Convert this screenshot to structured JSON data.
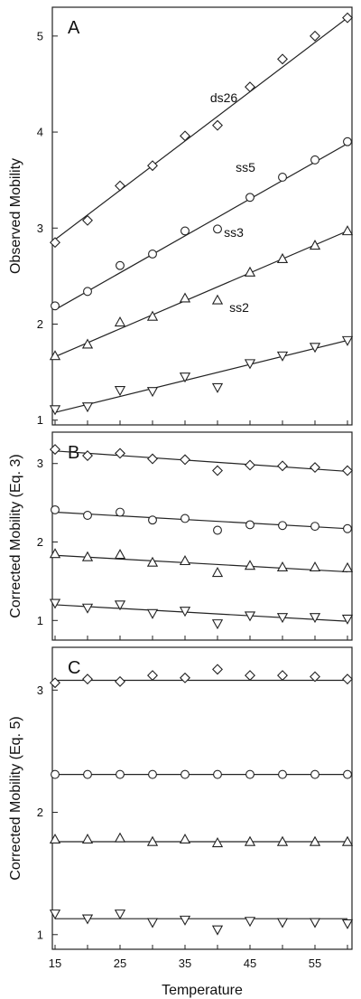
{
  "chart_data": [
    {
      "type": "scatter",
      "panel_label": "A",
      "ylabel": "Observed Mobility",
      "xlabel": "",
      "xlim": [
        15,
        60
      ],
      "ylim": [
        0.95,
        5.3
      ],
      "yticks": [
        1,
        2,
        3,
        4,
        5
      ],
      "x": [
        15,
        20,
        25,
        30,
        35,
        40,
        45,
        50,
        55,
        60
      ],
      "series": [
        {
          "name": "ds26",
          "marker": "diamond",
          "values": [
            2.85,
            3.08,
            3.44,
            3.65,
            3.96,
            4.07,
            4.47,
            4.76,
            5.0,
            5.19
          ],
          "fit": [
            2.88,
            5.19
          ]
        },
        {
          "name": "ss5",
          "marker": "circle",
          "values": [
            2.19,
            2.34,
            2.61,
            2.73,
            2.97,
            2.99,
            3.32,
            3.53,
            3.71,
            3.9
          ],
          "fit": [
            2.15,
            3.88
          ]
        },
        {
          "name": "ss3",
          "marker": "triangle-up",
          "values": [
            1.67,
            1.79,
            2.02,
            2.08,
            2.27,
            2.25,
            2.54,
            2.68,
            2.82,
            2.97
          ],
          "fit": [
            1.66,
            2.97
          ]
        },
        {
          "name": "ss2",
          "marker": "triangle-down",
          "values": [
            1.11,
            1.14,
            1.31,
            1.3,
            1.45,
            1.34,
            1.59,
            1.67,
            1.76,
            1.83
          ],
          "fit": [
            1.08,
            1.83
          ]
        }
      ]
    },
    {
      "type": "scatter",
      "panel_label": "B",
      "ylabel": "Corrected Mobility  (Eq. 3)",
      "xlabel": "",
      "xlim": [
        15,
        60
      ],
      "ylim": [
        0.75,
        3.4
      ],
      "yticks": [
        1,
        2,
        3
      ],
      "x": [
        15,
        20,
        25,
        30,
        35,
        40,
        45,
        50,
        55,
        60
      ],
      "series": [
        {
          "marker": "diamond",
          "values": [
            3.18,
            3.1,
            3.13,
            3.06,
            3.05,
            2.91,
            2.98,
            2.97,
            2.95,
            2.91
          ],
          "fit": [
            3.16,
            2.9
          ]
        },
        {
          "marker": "circle",
          "values": [
            2.41,
            2.34,
            2.38,
            2.28,
            2.3,
            2.15,
            2.22,
            2.21,
            2.2,
            2.17
          ],
          "fit": [
            2.38,
            2.17
          ]
        },
        {
          "marker": "triangle-up",
          "values": [
            1.85,
            1.81,
            1.84,
            1.74,
            1.76,
            1.61,
            1.7,
            1.68,
            1.68,
            1.67
          ],
          "fit": [
            1.83,
            1.62
          ]
        },
        {
          "marker": "triangle-down",
          "values": [
            1.22,
            1.16,
            1.2,
            1.09,
            1.12,
            0.96,
            1.06,
            1.04,
            1.04,
            1.02
          ],
          "fit": [
            1.2,
            0.99
          ]
        }
      ]
    },
    {
      "type": "scatter",
      "panel_label": "C",
      "ylabel": "Corrected Mobility (Eq. 5)",
      "xlabel": "Temperature",
      "xlim": [
        15,
        60
      ],
      "ylim": [
        0.88,
        3.35
      ],
      "yticks": [
        1,
        2,
        3
      ],
      "xticks": [
        15,
        25,
        35,
        45,
        55
      ],
      "x": [
        15,
        20,
        25,
        30,
        35,
        40,
        45,
        50,
        55,
        60
      ],
      "series": [
        {
          "marker": "diamond",
          "values": [
            3.06,
            3.09,
            3.07,
            3.12,
            3.1,
            3.17,
            3.12,
            3.12,
            3.11,
            3.09
          ],
          "fit": [
            3.08,
            3.08
          ]
        },
        {
          "marker": "circle",
          "values": [
            2.31,
            2.31,
            2.31,
            2.31,
            2.31,
            2.31,
            2.31,
            2.31,
            2.31,
            2.31
          ],
          "fit": [
            2.31,
            2.31
          ]
        },
        {
          "marker": "triangle-up",
          "values": [
            1.78,
            1.78,
            1.79,
            1.76,
            1.78,
            1.75,
            1.76,
            1.76,
            1.76,
            1.76
          ],
          "fit": [
            1.76,
            1.76
          ]
        },
        {
          "marker": "triangle-down",
          "values": [
            1.17,
            1.13,
            1.17,
            1.1,
            1.12,
            1.04,
            1.11,
            1.1,
            1.1,
            1.09
          ],
          "fit": [
            1.13,
            1.13
          ]
        }
      ]
    }
  ]
}
